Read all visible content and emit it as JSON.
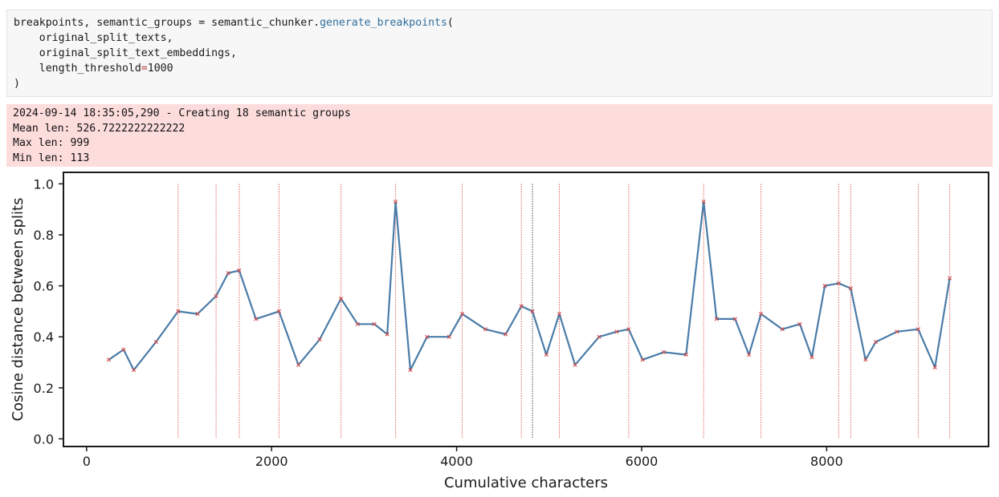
{
  "code": {
    "line1_a": "breakpoints, semantic_groups = semantic_chunker.",
    "line1_fn": "generate_breakpoints",
    "line1_b": "(",
    "line2": "    original_split_texts,",
    "line3": "    original_split_text_embeddings,",
    "line4_a": "    length_threshold",
    "line4_op": "=",
    "line4_b": "1000",
    "line5": ")"
  },
  "output": {
    "lines": [
      "2024-09-14 18:35:05,290 - Creating 18 semantic groups",
      "Mean len: 526.7222222222222",
      "Max len: 999",
      "Min len: 113"
    ]
  },
  "colors": {
    "line": "#4a7ca8",
    "marker": "#d04a4a",
    "breakpoint_red": "#e06060",
    "breakpoint_dark": "#444444"
  },
  "chart_data": {
    "type": "line",
    "xlabel": "Cumulative characters",
    "ylabel": "Cosine distance between splits",
    "xlim": [
      -250,
      9750
    ],
    "ylim": [
      -0.03,
      1.045
    ],
    "xticks": [
      0,
      2000,
      4000,
      6000,
      8000
    ],
    "yticks": [
      0.0,
      0.2,
      0.4,
      0.6,
      0.8,
      1.0
    ],
    "xtick_labels": [
      "0",
      "2000",
      "4000",
      "6000",
      "8000"
    ],
    "ytick_labels": [
      "0.0",
      "0.2",
      "0.4",
      "0.6",
      "0.8",
      "1.0"
    ],
    "series": [
      {
        "x": [
          240,
          400,
          510,
          750,
          990,
          1200,
          1400,
          1530,
          1650,
          1830,
          2080,
          2290,
          2520,
          2750,
          2930,
          3110,
          3250,
          3340,
          3500,
          3680,
          3920,
          4060,
          4310,
          4530,
          4700,
          4820,
          4970,
          5110,
          5280,
          5540,
          5730,
          5860,
          6010,
          6240,
          6480,
          6670,
          6810,
          7010,
          7160,
          7290,
          7520,
          7710,
          7840,
          7980,
          8130,
          8260,
          8420,
          8530,
          8760,
          8990,
          9170,
          9330
        ],
        "values": [
          0.31,
          0.35,
          0.27,
          0.38,
          0.5,
          0.49,
          0.56,
          0.65,
          0.66,
          0.47,
          0.5,
          0.29,
          0.39,
          0.55,
          0.45,
          0.45,
          0.41,
          0.93,
          0.27,
          0.4,
          0.4,
          0.49,
          0.43,
          0.41,
          0.52,
          0.5,
          0.33,
          0.49,
          0.29,
          0.4,
          0.42,
          0.43,
          0.31,
          0.34,
          0.33,
          0.93,
          0.47,
          0.47,
          0.33,
          0.49,
          0.43,
          0.45,
          0.32,
          0.6,
          0.61,
          0.59,
          0.31,
          0.38,
          0.42,
          0.43,
          0.28,
          0.63
        ]
      }
    ],
    "breakpoints_red": [
      990,
      1400,
      1650,
      2080,
      2750,
      3340,
      4060,
      4700,
      5110,
      5860,
      6670,
      7290,
      8130,
      8260,
      8990,
      9330
    ],
    "breakpoints_dark": [
      4820
    ],
    "grid": false,
    "legend": "none"
  }
}
